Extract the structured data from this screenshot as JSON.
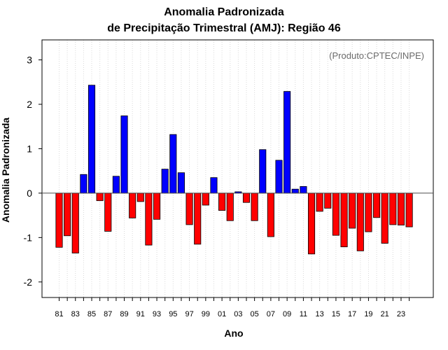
{
  "chart_data": {
    "type": "bar",
    "title": "Anomalia Padronizada",
    "subtitle": "de Precipitação Trimestral (AMJ): Região 46",
    "xlabel": "Ano",
    "ylabel": "Anomalia Padronizada",
    "annotation": "(Produto:CPTEC/INPE)",
    "ylim": [
      -2.35,
      3.45
    ],
    "yticks": [
      -2,
      -1,
      0,
      1,
      2,
      3
    ],
    "xtick_labels": [
      "81",
      "83",
      "85",
      "87",
      "89",
      "91",
      "93",
      "95",
      "97",
      "99",
      "01",
      "03",
      "05",
      "07",
      "09",
      "11",
      "13",
      "15",
      "17",
      "19",
      "21",
      "23"
    ],
    "categories": [
      "1981",
      "1982",
      "1983",
      "1984",
      "1985",
      "1986",
      "1987",
      "1988",
      "1989",
      "1990",
      "1991",
      "1992",
      "1993",
      "1994",
      "1995",
      "1996",
      "1997",
      "1998",
      "1999",
      "2000",
      "2001",
      "2002",
      "2003",
      "2004",
      "2005",
      "2006",
      "2007",
      "2008",
      "2009",
      "2010",
      "2011",
      "2012",
      "2013",
      "2014",
      "2015",
      "2016",
      "2017",
      "2018",
      "2019",
      "2020",
      "2021",
      "2022",
      "2023",
      "2024"
    ],
    "values": [
      -1.22,
      -0.96,
      -1.35,
      0.42,
      2.43,
      -0.17,
      -0.86,
      0.38,
      1.74,
      -0.56,
      -0.19,
      -1.17,
      -0.59,
      0.54,
      1.32,
      0.46,
      -0.71,
      -1.15,
      -0.27,
      0.35,
      -0.39,
      -0.62,
      0.03,
      -0.21,
      -0.62,
      0.98,
      -0.98,
      0.74,
      2.29,
      0.09,
      0.15,
      -1.37,
      -0.41,
      -0.34,
      -0.95,
      -1.21,
      -0.79,
      -1.3,
      -0.87,
      -0.55,
      -1.13,
      -0.71,
      -0.72,
      -0.76
    ],
    "grid": true,
    "colors": {
      "positive": "#0000ff",
      "negative": "#ff0000",
      "grid": "#d9d9d9",
      "zero_line": "#4d4d4d",
      "credit": "#6b6b6b"
    }
  }
}
